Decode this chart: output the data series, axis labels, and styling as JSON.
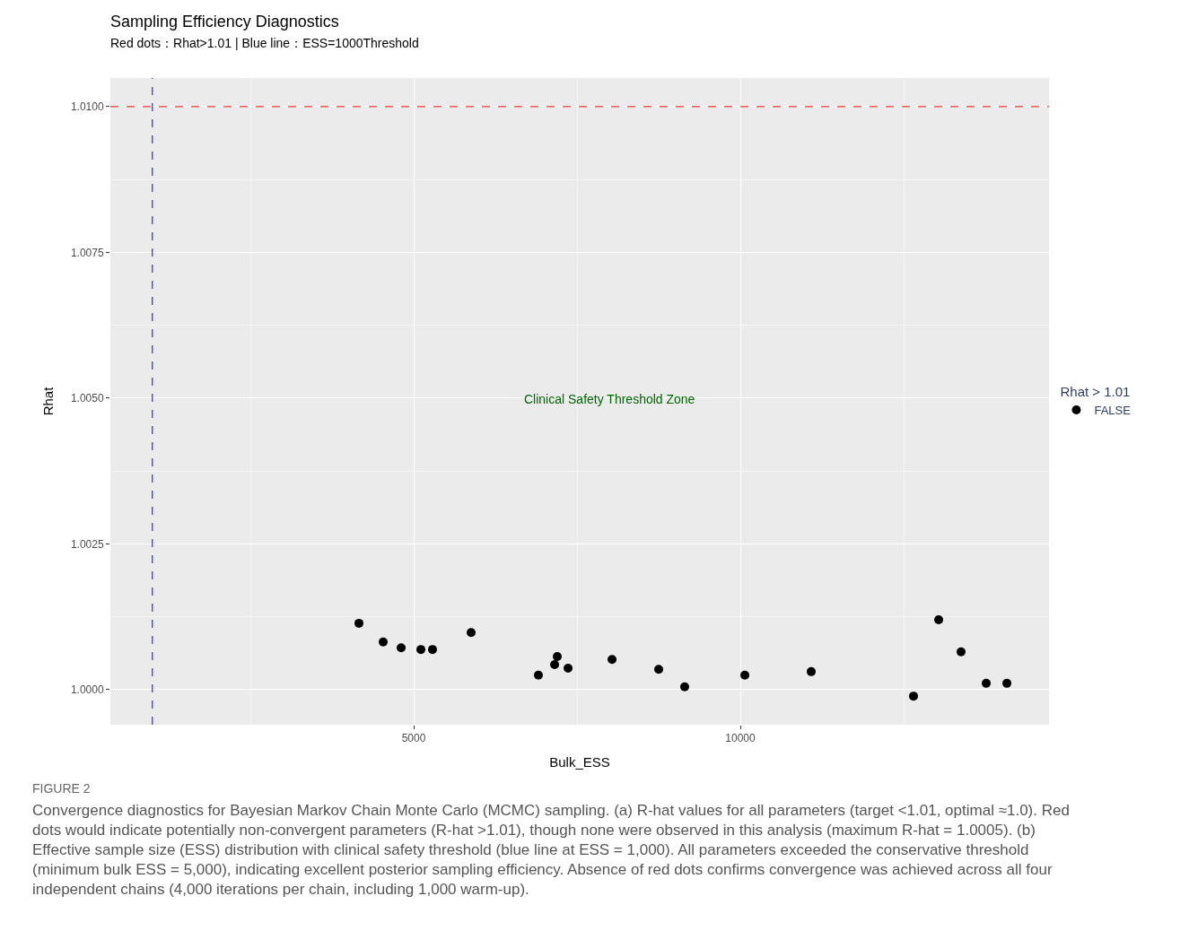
{
  "chart_data": {
    "type": "scatter",
    "title": "Sampling Efficiency Diagnostics",
    "subtitle": "Red dots：Rhat>1.01 | Blue line：ESS=1000Threshold",
    "xlabel": "Bulk_ESS",
    "ylabel": "Rhat",
    "legend_title": "Rhat > 1.01",
    "series": [
      {
        "name": "FALSE",
        "color": "#000000",
        "x": [
          4162,
          4533,
          4808,
          5110,
          5288,
          5879,
          6909,
          7157,
          7198,
          7363,
          8036,
          8750,
          9148,
          10069,
          11085,
          12651,
          13036,
          13379,
          13764,
          14080
        ],
        "values": [
          1.00114,
          1.00082,
          1.00072,
          1.00069,
          1.00069,
          1.00098,
          1.00025,
          1.00043,
          1.00057,
          1.00037,
          1.00052,
          1.00035,
          1.00005,
          1.00025,
          1.00031,
          0.99989,
          1.0012,
          1.00065,
          1.00011,
          1.00011
        ]
      }
    ],
    "xlim": [
      357,
      14725
    ],
    "xticks": [
      5000,
      10000
    ],
    "ylim": [
      0.9994,
      1.01049
    ],
    "yticks": [
      {
        "value": 1.0,
        "label": "1.0000"
      },
      {
        "value": 1.0025,
        "label": "1.0025"
      },
      {
        "value": 1.005,
        "label": "1.0050"
      },
      {
        "value": 1.0075,
        "label": "1.0075"
      },
      {
        "value": 1.01,
        "label": "1.0100"
      }
    ],
    "ref_lines": [
      {
        "axis": "y",
        "value": 1.01,
        "color": "#ff0000",
        "line_style": "dashed"
      },
      {
        "axis": "x",
        "value": 1000,
        "color": "#0000ff",
        "line_style": "dashed"
      }
    ],
    "annotations": [
      "Clinical Safety Threshold Zone",
      "FIGURE 2",
      "Convergence diagnostics for Bayesian Markov Chain Monte Carlo (MCMC) sampling. (a) R-hat values for all parameters (target <1.01, optimal ≈1.0). Red dots would indicate potentially non-convergent parameters (R-hat >1.01), though none were observed in this analysis (maximum R-hat = 1.0005). (b) Effective sample size (ESS) distribution with clinical safety threshold (blue line at ESS = 1,000). All parameters exceeded the conservative threshold (minimum bulk ESS = 5,000), indicating excellent posterior sampling efficiency. Absence of red dots confirms convergence was achieved across all four independent chains (4,000 iterations per chain, including 1,000 warm-up)."
    ],
    "grid": true,
    "legend": "right",
    "marker": "circle"
  }
}
